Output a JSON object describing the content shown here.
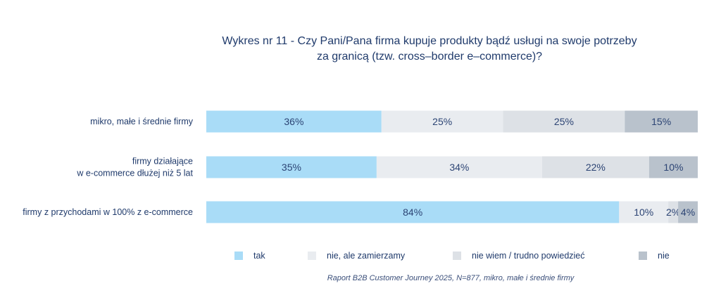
{
  "chart_data": {
    "type": "bar",
    "orientation": "horizontal",
    "stacked": true,
    "title_lines": [
      "Wykres nr 11 - Czy Pani/Pana firma kupuje produkty bądź usługi na swoje potrzeby",
      "za granicą (tzw. cross–border e–commerce)?"
    ],
    "categories": [
      [
        "mikro, małe i średnie firmy"
      ],
      [
        "firmy działające",
        "w e-commerce dłużej niż 5 lat"
      ],
      [
        "firmy z przychodami w 100% z e-commerce"
      ]
    ],
    "series": [
      {
        "name": "tak",
        "values": [
          36,
          35,
          84
        ],
        "labels": [
          "36%",
          "35%",
          "84%"
        ],
        "color": "#a9dcf7"
      },
      {
        "name": "nie, ale zamierzamy",
        "values": [
          25,
          34,
          10
        ],
        "labels": [
          "25%",
          "34%",
          "10%"
        ],
        "color": "#e9ecf0"
      },
      {
        "name": "nie wiem / trudno powiedzieć",
        "values": [
          25,
          22,
          2
        ],
        "labels": [
          "25%",
          "22%",
          "2%"
        ],
        "color": "#dde1e6"
      },
      {
        "name": "nie",
        "values": [
          15,
          10,
          4
        ],
        "labels": [
          "15%",
          "10%",
          "4%"
        ],
        "color": "#b9c2cc"
      }
    ],
    "legend_position": "bottom",
    "grid": false
  },
  "source": "Raport B2B Customer Journey 2025, N=877, mikro, małe i średnie firmy"
}
